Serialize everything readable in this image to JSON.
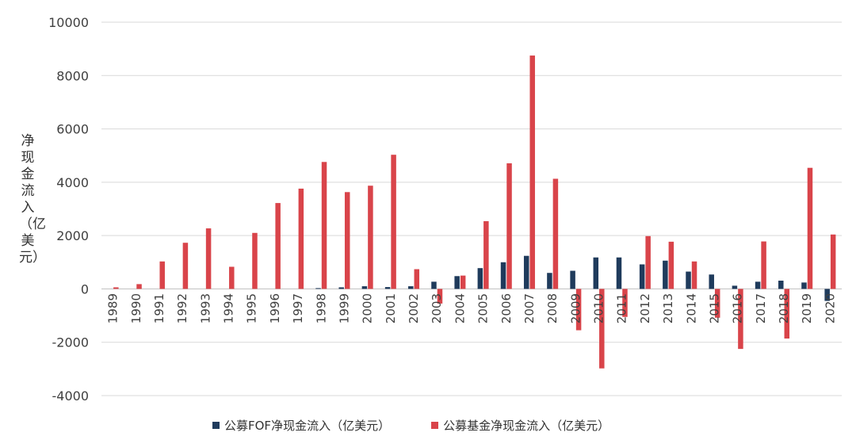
{
  "chart_data": {
    "type": "bar",
    "title": "",
    "ylabel": "净现金流入（亿美元）",
    "xlabel": "",
    "ylim": [
      -4000,
      10000
    ],
    "yticks": [
      10000,
      8000,
      6000,
      4000,
      2000,
      0,
      -2000,
      -4000
    ],
    "grid": true,
    "legend_position": "bottom",
    "categories": [
      "1989",
      "1990",
      "1991",
      "1992",
      "1993",
      "1994",
      "1995",
      "1996",
      "1997",
      "1998",
      "1999",
      "2000",
      "2001",
      "2002",
      "2003",
      "2004",
      "2005",
      "2006",
      "2007",
      "2008",
      "2009",
      "2010",
      "2011",
      "2012",
      "2013",
      "2014",
      "2015",
      "2016",
      "2017",
      "2018",
      "2019",
      "2020"
    ],
    "series": [
      {
        "name": "公募FOF净现金流入（亿美元）",
        "color": "#1f3b5c",
        "values": [
          0,
          0,
          0,
          0,
          0,
          0,
          0,
          0,
          0,
          30,
          60,
          100,
          70,
          100,
          270,
          480,
          780,
          1000,
          1240,
          600,
          680,
          1180,
          1180,
          920,
          1060,
          650,
          540,
          120,
          270,
          310,
          240,
          -450
        ]
      },
      {
        "name": "公募基金净现金流入（亿美元）",
        "color": "#d9444a",
        "values": [
          60,
          180,
          1030,
          1730,
          2270,
          830,
          2100,
          3220,
          3760,
          4760,
          3630,
          3870,
          5030,
          740,
          -550,
          500,
          2540,
          4710,
          8750,
          4130,
          -1550,
          -2980,
          -1050,
          1980,
          1770,
          1030,
          -1080,
          -2250,
          1780,
          -1860,
          4540,
          2040
        ]
      }
    ]
  }
}
